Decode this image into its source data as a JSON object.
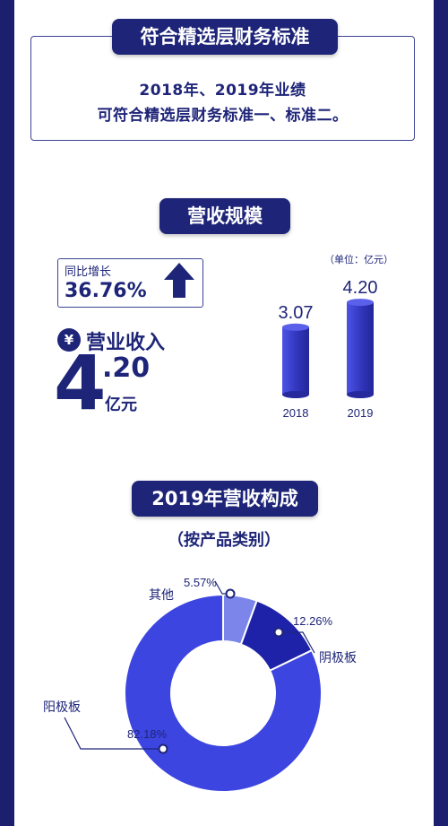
{
  "section1": {
    "title": "符合精选层财务标准",
    "line1": "2018年、2019年业绩",
    "line2": "可符合精选层财务标准一、标准二。"
  },
  "section2": {
    "title": "营收规模",
    "growth_label": "同比增长",
    "growth_value": "36.76%",
    "revenue_label": "营业收入",
    "revenue_int": "4",
    "revenue_dec": ".20",
    "revenue_unit": "亿元",
    "unit_note": "（单位：亿元）",
    "yen_symbol": "¥"
  },
  "section3": {
    "title": "2019年营收构成",
    "subtitle": "（按产品类别）"
  },
  "colors": {
    "navy": "#1e2578",
    "bar": "#3a3fd1",
    "slice_main": "#3d45e0",
    "slice_b": "#1e22a8",
    "slice_other": "#7c86ea",
    "frame": "#1b1f6e"
  },
  "chart_data": [
    {
      "type": "bar",
      "categories": [
        "2018",
        "2019"
      ],
      "values": [
        3.07,
        4.2
      ],
      "value_labels": [
        "3.07",
        "4.20"
      ],
      "ylabel": "",
      "unit": "亿元"
    },
    {
      "type": "pie",
      "slices": [
        {
          "label": "阳极板",
          "value": 82.18,
          "value_label": "82.18%"
        },
        {
          "label": "阴极板",
          "value": 12.26,
          "value_label": "12.26%"
        },
        {
          "label": "其他",
          "value": 5.57,
          "value_label": "5.57%"
        }
      ]
    }
  ]
}
